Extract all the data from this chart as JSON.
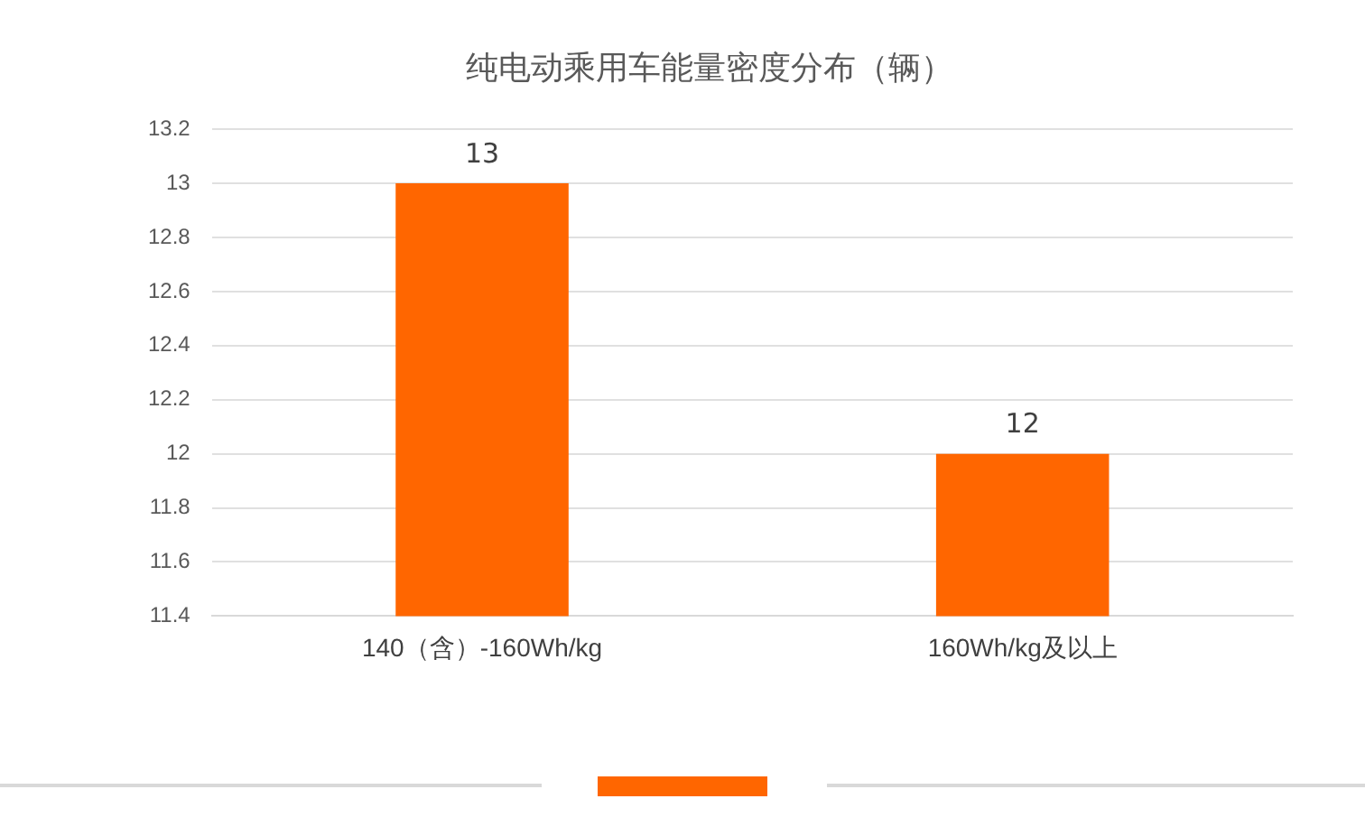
{
  "chart_data": {
    "type": "bar",
    "title": "纯电动乘用车能量密度分布（辆）",
    "categories": [
      "140（含）-160Wh/kg",
      "160Wh/kg及以上"
    ],
    "values": [
      13,
      12
    ],
    "color": "#ff6600",
    "ylim": [
      11.4,
      13.2
    ],
    "yticks": [
      11.4,
      11.6,
      11.8,
      12,
      12.2,
      12.4,
      12.6,
      12.8,
      13,
      13.2
    ],
    "grid": "y",
    "data_labels": true
  }
}
